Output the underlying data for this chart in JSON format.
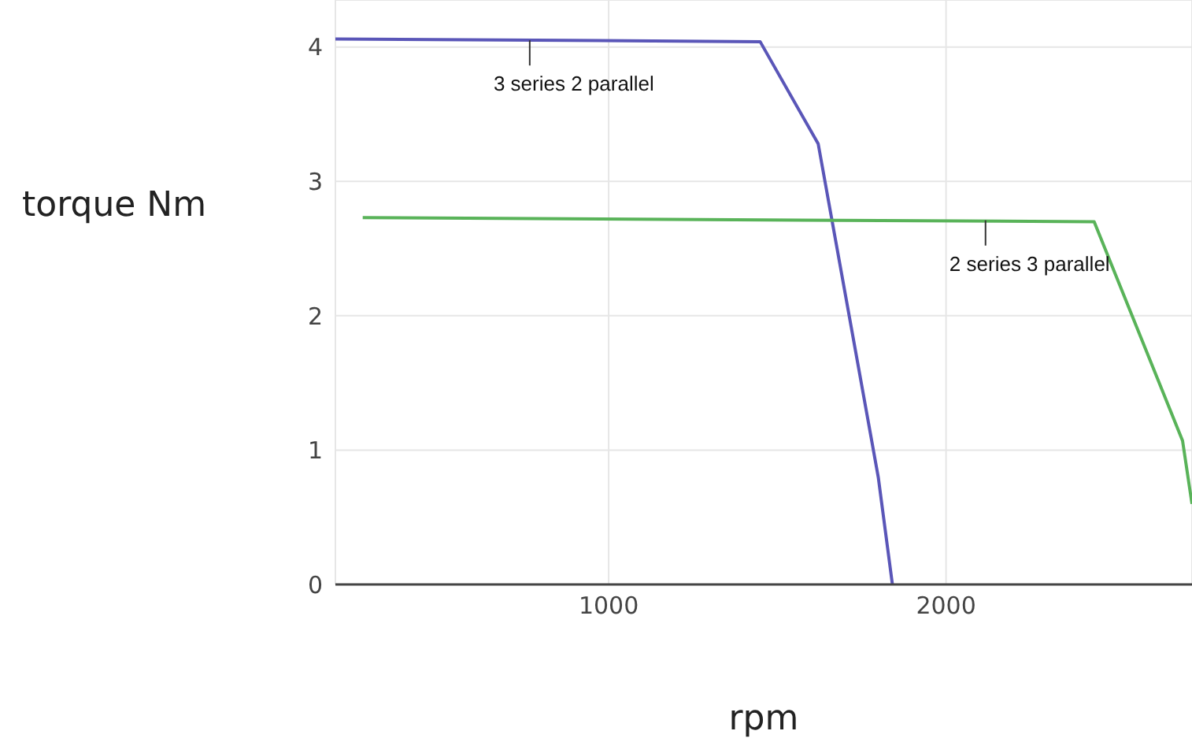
{
  "chart_data": {
    "type": "line",
    "xlabel": "rpm",
    "ylabel": "torque Nm",
    "xlim": [
      190,
      2729
    ],
    "ylim": [
      0,
      4.35
    ],
    "xticks": [
      1000,
      2000
    ],
    "yticks": [
      0,
      1,
      2,
      3,
      4
    ],
    "grid": true,
    "marker": "none",
    "line_style": "solid",
    "series": [
      {
        "color": "#5a56b8",
        "x": [
          190,
          1449,
          1621,
          1799,
          1841
        ],
        "values": [
          4.06,
          4.04,
          3.28,
          0.8,
          0
        ]
      },
      {
        "color": "#59b359",
        "x": [
          271,
          2439,
          2701,
          2729
        ],
        "values": [
          2.73,
          2.7,
          1.07,
          0.6
        ]
      }
    ],
    "annotations": [
      {
        "text": "3 series 2 parallel",
        "x": 766,
        "y": 4.05
      },
      {
        "text": "2 series 3 parallel",
        "x": 2117,
        "y": 2.71
      }
    ]
  }
}
